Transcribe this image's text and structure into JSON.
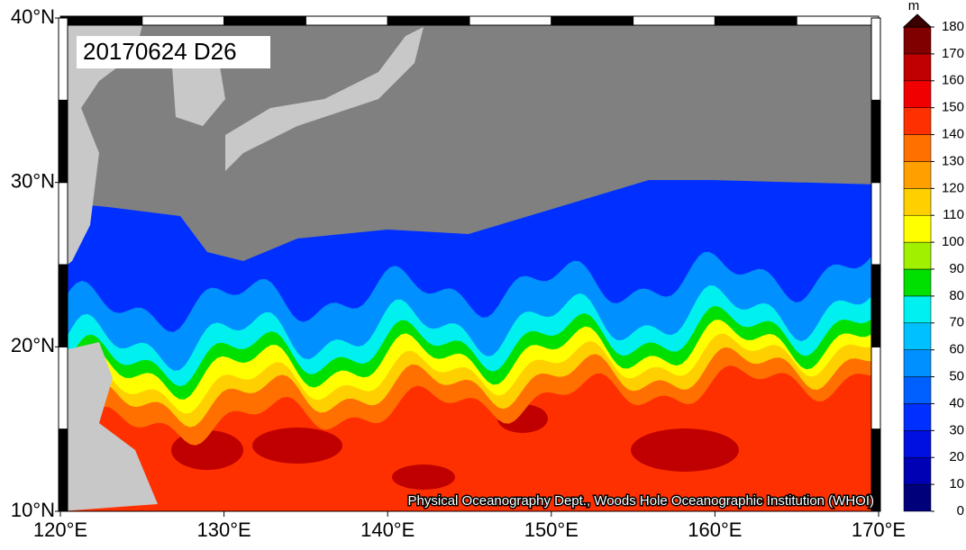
{
  "map": {
    "label": "20170624 D26",
    "credit": "Physical Oceanography Dept., Woods Hole Oceanographic Institution (WHOI)",
    "lonlim": [
      120,
      170
    ],
    "latlim": [
      10,
      40
    ],
    "lonticks": [
      {
        "value": 120,
        "label": "120°E"
      },
      {
        "value": 130,
        "label": "130°E"
      },
      {
        "value": 140,
        "label": "140°E"
      },
      {
        "value": 150,
        "label": "150°E"
      },
      {
        "value": 160,
        "label": "160°E"
      },
      {
        "value": 170,
        "label": "170°E"
      }
    ],
    "latticks": [
      {
        "value": 10,
        "label": "10°N"
      },
      {
        "value": 20,
        "label": "20°N"
      },
      {
        "value": 30,
        "label": "30°N"
      },
      {
        "value": 40,
        "label": "40°N"
      }
    ]
  },
  "colorbar": {
    "unit": "m",
    "levels": [
      0,
      10,
      20,
      30,
      40,
      50,
      60,
      70,
      80,
      90,
      100,
      110,
      120,
      130,
      140,
      150,
      160,
      170,
      180
    ],
    "colors": [
      "#00007a",
      "#0000b4",
      "#0010e0",
      "#0030ff",
      "#0060ff",
      "#0090ff",
      "#00c0ff",
      "#00f0f0",
      "#00e000",
      "#a0f000",
      "#ffff00",
      "#ffd000",
      "#ffa000",
      "#ff7000",
      "#ff3000",
      "#f00000",
      "#c00000",
      "#800000"
    ],
    "top_color": "#3a0000"
  }
}
